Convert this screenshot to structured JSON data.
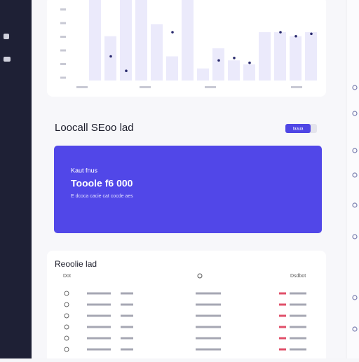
{
  "chart": {
    "type": "bar",
    "values": [
      100,
      55,
      100,
      100,
      70,
      30,
      100,
      15,
      40,
      25,
      20,
      60,
      60,
      55,
      60
    ],
    "points": [
      null,
      30,
      12,
      null,
      null,
      60,
      null,
      null,
      25,
      28,
      22,
      null,
      60,
      55,
      58
    ],
    "ylim": [
      0,
      100
    ]
  },
  "section": {
    "title": "Loocall SEoo lad",
    "button": "Iaaua"
  },
  "banner": {
    "label": "Kaut fnus",
    "amount": "Tooole f6 000",
    "note": "E dcoca cacie cat cocde aes"
  },
  "table": {
    "title": "Reoolie lad",
    "headers": [
      "Dot",
      "Dsdbot"
    ]
  }
}
